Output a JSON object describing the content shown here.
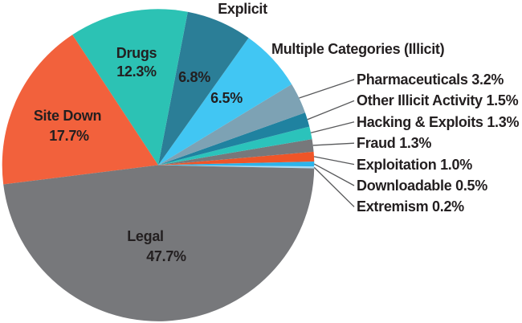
{
  "chart_data": {
    "type": "pie",
    "title": "",
    "unit": "%",
    "direction": "counterclockwise",
    "start_angle_deg": -1.2,
    "slices": [
      {
        "label": "Extremism",
        "value": 0.2,
        "color": "#a8ddf5"
      },
      {
        "label": "Downloadable",
        "value": 0.5,
        "color": "#2db4ea"
      },
      {
        "label": "Exploitation",
        "value": 1.0,
        "color": "#ef5528"
      },
      {
        "label": "Fraud",
        "value": 1.3,
        "color": "#77787b"
      },
      {
        "label": "Hacking & Exploits",
        "value": 1.3,
        "color": "#2bc3bb"
      },
      {
        "label": "Other Illicit Activity",
        "value": 1.5,
        "color": "#1f82a0"
      },
      {
        "label": "Pharmaceuticals",
        "value": 3.2,
        "color": "#7da2b4"
      },
      {
        "label": "Multiple Categories (Illicit)",
        "value": 6.5,
        "color": "#41c6f3"
      },
      {
        "label": "Explicit",
        "value": 6.8,
        "color": "#2b7e97"
      },
      {
        "label": "Drugs",
        "value": 12.3,
        "color": "#2cc2b4"
      },
      {
        "label": "Site Down",
        "value": 17.7,
        "color": "#f2613c"
      },
      {
        "label": "Legal",
        "value": 47.7,
        "color": "#77787b"
      }
    ]
  },
  "inner_labels": {
    "drugs_name": "Drugs",
    "drugs_value": "12.3%",
    "explicit_value": "6.8%",
    "multiple_value": "6.5%",
    "site_down_name": "Site Down",
    "site_down_value": "17.7%",
    "legal_name": "Legal",
    "legal_value": "47.7%"
  },
  "outer_labels": {
    "explicit": "Explicit",
    "multiple": "Multiple Categories (Illicit)"
  },
  "callouts": [
    {
      "text": "Pharmaceuticals 3.2%"
    },
    {
      "text": "Other Illicit Activity 1.5%"
    },
    {
      "text": "Hacking & Exploits 1.3%"
    },
    {
      "text": "Fraud 1.3%"
    },
    {
      "text": "Exploitation 1.0%"
    },
    {
      "text": "Downloadable 0.5%"
    },
    {
      "text": "Extremism 0.2%"
    }
  ],
  "style": {
    "text_color": "#231f20",
    "leader_line_color": "#58595b",
    "background": "#ffffff"
  }
}
